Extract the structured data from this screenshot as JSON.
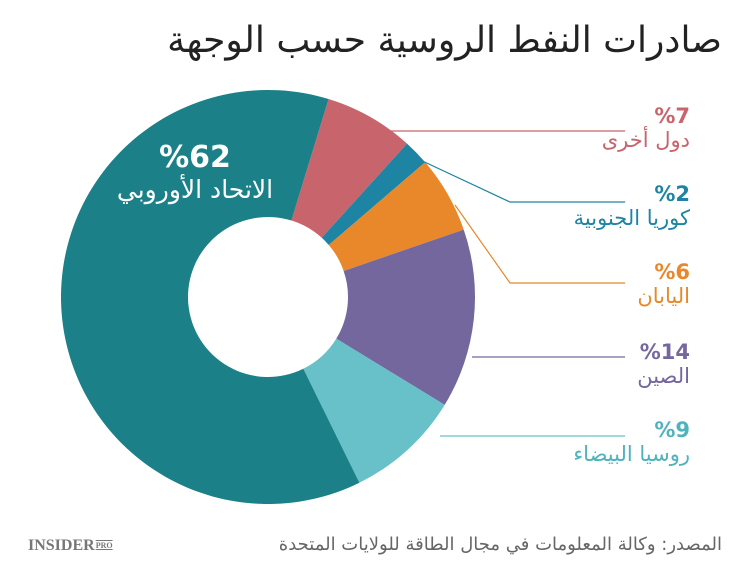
{
  "chart_data": {
    "type": "pie",
    "title": "صادرات النفط الروسية حسب الوجهة",
    "unit": "%",
    "donut": true,
    "slices": [
      {
        "label": "دول أخرى",
        "value": 7,
        "display": "%7",
        "color": "#c8646c"
      },
      {
        "label": "كوريا الجنوبية",
        "value": 2,
        "display": "%2",
        "color": "#1e84a3"
      },
      {
        "label": "اليابان",
        "value": 6,
        "display": "%6",
        "color": "#e8882a"
      },
      {
        "label": "الصين",
        "value": 14,
        "display": "%14",
        "color": "#74679e"
      },
      {
        "label": "روسيا البيضاء",
        "value": 9,
        "display": "%9",
        "color": "#68c0c9"
      },
      {
        "label": "الاتحاد الأوروبي",
        "value": 62,
        "display": "%62",
        "color": "#1b8087"
      }
    ]
  },
  "source": "المصدر: وكالة المعلومات في مجال الطاقة للولايات المتحدة",
  "logo": {
    "main": "INSIDER",
    "sub": "PRO"
  }
}
